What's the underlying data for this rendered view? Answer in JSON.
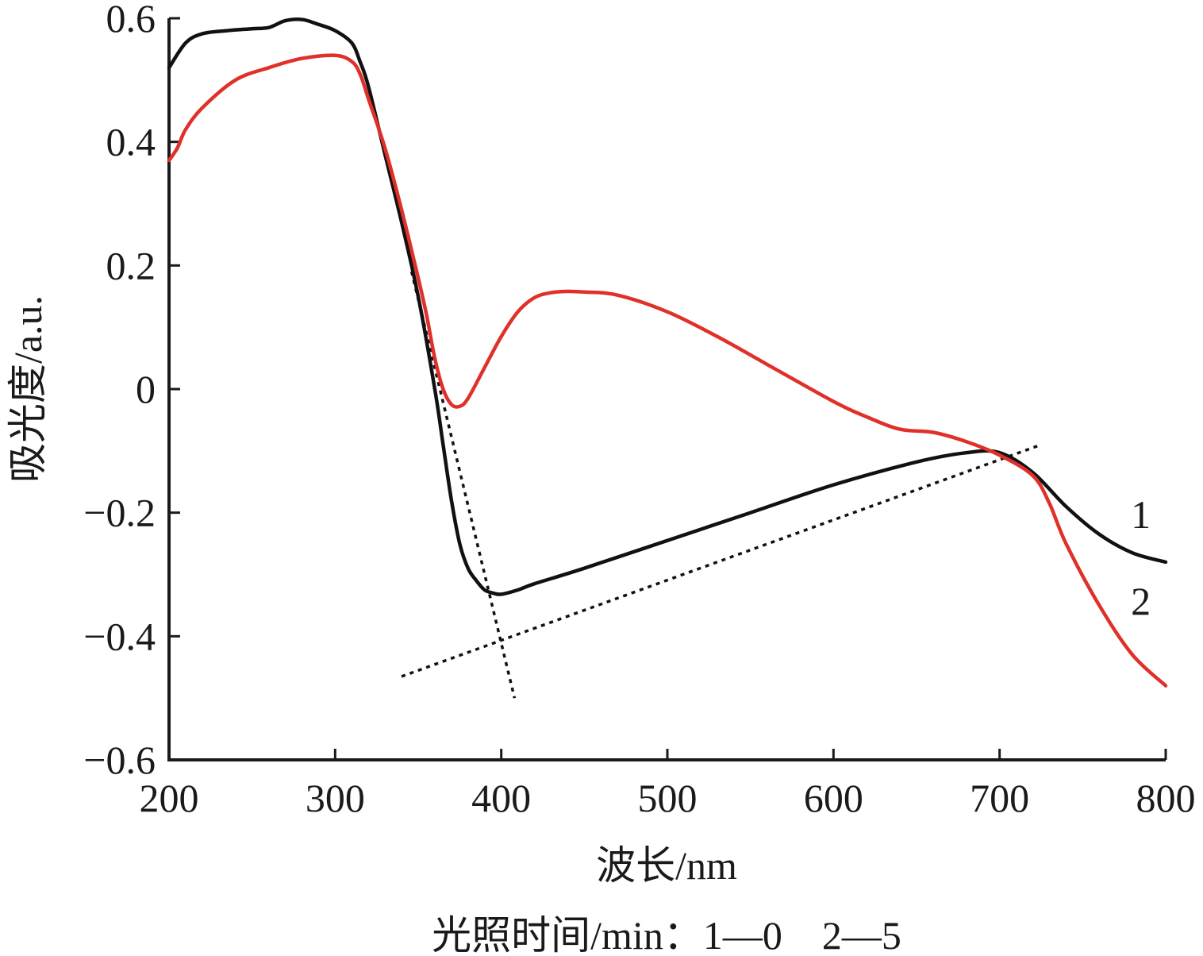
{
  "chart_data": {
    "type": "line",
    "xlabel": "波长/nm",
    "ylabel": "吸光度/a.u.",
    "caption": "光照时间/min：1—0　2—5",
    "xlim": [
      200,
      800
    ],
    "ylim": [
      -0.6,
      0.6
    ],
    "xticks": [
      200,
      300,
      400,
      500,
      600,
      700,
      800
    ],
    "yticks": [
      0.6,
      0.4,
      0.2,
      0,
      -0.2,
      -0.4,
      -0.6
    ],
    "ytick_labels": [
      "0.6",
      "0.4",
      "0.2",
      "0",
      "−0.2",
      "−0.4",
      "−0.6"
    ],
    "grid": false,
    "series": [
      {
        "name": "1",
        "color": "#111111",
        "x": [
          200,
          210,
          220,
          235,
          250,
          260,
          270,
          280,
          290,
          300,
          310,
          315,
          320,
          330,
          340,
          350,
          360,
          365,
          370,
          375,
          380,
          385,
          390,
          395,
          400,
          410,
          420,
          450,
          500,
          550,
          600,
          650,
          680,
          700,
          720,
          740,
          760,
          780,
          800
        ],
        "y": [
          0.52,
          0.56,
          0.575,
          0.58,
          0.583,
          0.585,
          0.596,
          0.598,
          0.59,
          0.58,
          0.56,
          0.53,
          0.49,
          0.38,
          0.27,
          0.15,
          0.0,
          -0.09,
          -0.18,
          -0.25,
          -0.29,
          -0.31,
          -0.325,
          -0.33,
          -0.332,
          -0.325,
          -0.315,
          -0.29,
          -0.245,
          -0.2,
          -0.155,
          -0.118,
          -0.103,
          -0.103,
          -0.135,
          -0.19,
          -0.235,
          -0.265,
          -0.28
        ]
      },
      {
        "name": "2",
        "color": "#e0302a",
        "x": [
          200,
          205,
          210,
          220,
          240,
          260,
          280,
          300,
          310,
          315,
          320,
          330,
          340,
          350,
          355,
          360,
          365,
          370,
          375,
          380,
          390,
          400,
          410,
          420,
          430,
          440,
          450,
          470,
          500,
          530,
          560,
          600,
          620,
          640,
          660,
          680,
          700,
          720,
          730,
          740,
          760,
          780,
          800
        ],
        "y": [
          0.37,
          0.39,
          0.42,
          0.455,
          0.5,
          0.52,
          0.535,
          0.54,
          0.53,
          0.51,
          0.47,
          0.39,
          0.29,
          0.18,
          0.12,
          0.05,
          0.0,
          -0.025,
          -0.028,
          -0.015,
          0.035,
          0.085,
          0.125,
          0.148,
          0.156,
          0.158,
          0.157,
          0.152,
          0.125,
          0.085,
          0.04,
          -0.02,
          -0.045,
          -0.065,
          -0.07,
          -0.085,
          -0.107,
          -0.14,
          -0.185,
          -0.25,
          -0.35,
          -0.43,
          -0.48
        ]
      }
    ],
    "reference_lines": [
      {
        "style": "dotted",
        "color": "#111111",
        "x1": 346,
        "y1": 0.19,
        "x2": 408,
        "y2": -0.5
      },
      {
        "style": "dotted",
        "color": "#111111",
        "x1": 340,
        "y1": -0.465,
        "x2": 725,
        "y2": -0.09
      }
    ]
  }
}
